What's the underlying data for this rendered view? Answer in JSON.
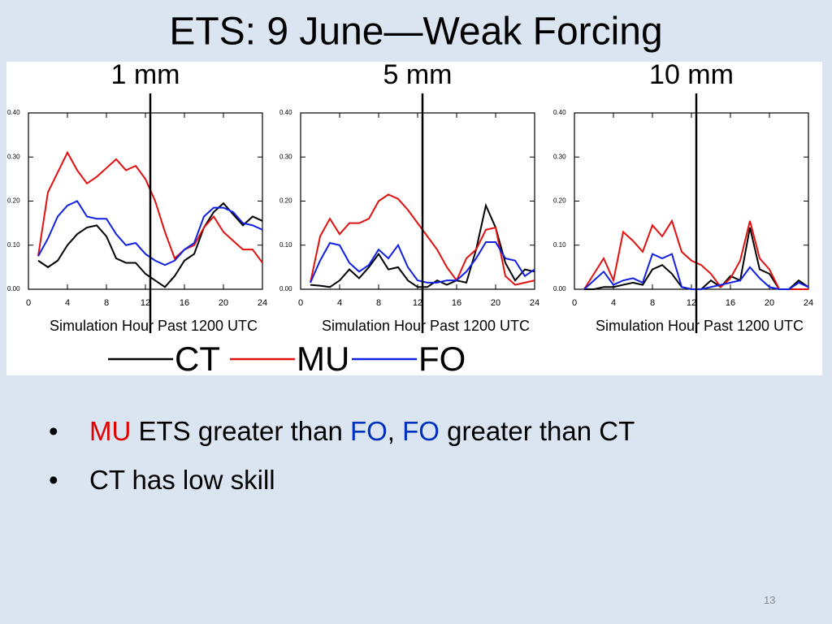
{
  "slide": {
    "title": "ETS:  9 June—Weak Forcing",
    "bullets": [
      [
        {
          "text": "MU",
          "color": "#e00000"
        },
        {
          "text": " ETS greater than ",
          "color": "#000000"
        },
        {
          "text": "FO",
          "color": "#0030c0"
        },
        {
          "text": ", ",
          "color": "#000000"
        },
        {
          "text": "FO",
          "color": "#0030c0"
        },
        {
          "text": " greater than CT",
          "color": "#000000"
        }
      ],
      [
        {
          "text": "CT has low skill",
          "color": "#000000"
        }
      ]
    ],
    "page_number": "13"
  },
  "legend": [
    {
      "name": "CT",
      "color": "#000000"
    },
    {
      "name": "MU",
      "color": "#e01010"
    },
    {
      "name": "FO",
      "color": "#1020e0"
    }
  ],
  "chart_data": [
    {
      "type": "line",
      "title": "1 mm",
      "x_label": "Simulation Hour Past 1200 UTC",
      "marker_x": 12.5,
      "xlim": [
        0,
        24
      ],
      "xticks": [
        0,
        4,
        8,
        12,
        16,
        20,
        24
      ],
      "ylim": [
        0,
        0.4
      ],
      "yticks": [
        {
          "value": 0,
          "label": "0.00"
        },
        {
          "value": 0.1,
          "label": "0.10"
        },
        {
          "value": 0.2,
          "label": "0.20"
        },
        {
          "value": 0.3,
          "label": "0.30"
        },
        {
          "value": 0.4,
          "label": "0.40"
        }
      ],
      "x": [
        1,
        2,
        3,
        4,
        5,
        6,
        7,
        8,
        9,
        10,
        11,
        12,
        13,
        14,
        15,
        16,
        17,
        18,
        19,
        20,
        21,
        22,
        23,
        24
      ],
      "series": [
        {
          "values": [
            0.065,
            0.05,
            0.065,
            0.1,
            0.125,
            0.14,
            0.145,
            0.12,
            0.07,
            0.06,
            0.06,
            0.035,
            0.02,
            0.005,
            0.03,
            0.065,
            0.08,
            0.14,
            0.175,
            0.195,
            0.17,
            0.145,
            0.165,
            0.155
          ]
        },
        {
          "values": [
            0.075,
            0.22,
            0.265,
            0.31,
            0.27,
            0.24,
            0.255,
            0.275,
            0.295,
            0.27,
            0.28,
            0.25,
            0.2,
            0.13,
            0.07,
            0.09,
            0.1,
            0.14,
            0.165,
            0.13,
            0.11,
            0.09,
            0.09,
            0.06
          ]
        },
        {
          "values": [
            0.075,
            0.115,
            0.165,
            0.19,
            0.2,
            0.165,
            0.16,
            0.16,
            0.125,
            0.1,
            0.105,
            0.08,
            0.065,
            0.055,
            0.065,
            0.09,
            0.105,
            0.165,
            0.185,
            0.185,
            0.175,
            0.15,
            0.145,
            0.135
          ]
        }
      ]
    },
    {
      "type": "line",
      "title": "5 mm",
      "x_label": "Simulation Hour Past 1200 UTC",
      "marker_x": 12.5,
      "xlim": [
        0,
        24
      ],
      "xticks": [
        0,
        4,
        8,
        12,
        16,
        20,
        24
      ],
      "ylim": [
        0,
        0.4
      ],
      "yticks": [
        {
          "value": 0,
          "label": "0.00"
        },
        {
          "value": 0.1,
          "label": "0.10"
        },
        {
          "value": 0.2,
          "label": "0.20"
        },
        {
          "value": 0.3,
          "label": "0.30"
        },
        {
          "value": 0.4,
          "label": "0.40"
        }
      ],
      "x": [
        1,
        2,
        3,
        4,
        5,
        6,
        7,
        8,
        9,
        10,
        11,
        12,
        13,
        14,
        15,
        16,
        17,
        18,
        19,
        20,
        21,
        22,
        23,
        24
      ],
      "series": [
        {
          "values": [
            0.01,
            0.008,
            0.005,
            0.02,
            0.045,
            0.025,
            0.05,
            0.08,
            0.045,
            0.05,
            0.02,
            0.005,
            0.005,
            0.02,
            0.01,
            0.02,
            0.015,
            0.09,
            0.19,
            0.14,
            0.06,
            0.02,
            0.045,
            0.04
          ]
        },
        {
          "values": [
            0.015,
            0.12,
            0.16,
            0.125,
            0.15,
            0.15,
            0.16,
            0.2,
            0.215,
            0.205,
            0.18,
            0.15,
            0.12,
            0.09,
            0.05,
            0.02,
            0.07,
            0.09,
            0.135,
            0.14,
            0.03,
            0.01,
            0.015,
            0.02
          ]
        },
        {
          "values": [
            0.015,
            0.065,
            0.105,
            0.1,
            0.06,
            0.04,
            0.055,
            0.09,
            0.07,
            0.1,
            0.05,
            0.02,
            0.015,
            0.015,
            0.02,
            0.02,
            0.04,
            0.07,
            0.107,
            0.107,
            0.07,
            0.065,
            0.03,
            0.045
          ]
        }
      ]
    },
    {
      "type": "line",
      "title": "10 mm",
      "x_label": "Simulation Hour Past 1200 UTC",
      "marker_x": 12.5,
      "xlim": [
        0,
        24
      ],
      "xticks": [
        0,
        4,
        8,
        12,
        16,
        20,
        24
      ],
      "ylim": [
        0,
        0.4
      ],
      "yticks": [
        {
          "value": 0,
          "label": "0.00"
        },
        {
          "value": 0.1,
          "label": "0.10"
        },
        {
          "value": 0.2,
          "label": "0.20"
        },
        {
          "value": 0.3,
          "label": "0.30"
        },
        {
          "value": 0.4,
          "label": "0.40"
        }
      ],
      "x": [
        1,
        2,
        3,
        4,
        5,
        6,
        7,
        8,
        9,
        10,
        11,
        12,
        13,
        14,
        15,
        16,
        17,
        18,
        19,
        20,
        21,
        22,
        23,
        24
      ],
      "series": [
        {
          "values": [
            0,
            0,
            0.005,
            0.005,
            0.01,
            0.015,
            0.01,
            0.045,
            0.055,
            0.035,
            0.005,
            0,
            0,
            0.02,
            0.005,
            0.03,
            0.02,
            0.14,
            0.045,
            0.035,
            0,
            0,
            0.02,
            0.005
          ]
        },
        {
          "values": [
            0,
            0.035,
            0.07,
            0.02,
            0.13,
            0.11,
            0.085,
            0.145,
            0.12,
            0.155,
            0.085,
            0.065,
            0.055,
            0.035,
            0.005,
            0.025,
            0.065,
            0.155,
            0.07,
            0.045,
            0,
            0,
            0,
            0
          ]
        },
        {
          "values": [
            0,
            0.02,
            0.04,
            0.01,
            0.02,
            0.025,
            0.015,
            0.08,
            0.07,
            0.08,
            0.005,
            0,
            0,
            0.005,
            0.01,
            0.015,
            0.02,
            0.05,
            0.025,
            0.005,
            0,
            0,
            0.015,
            0.005
          ]
        }
      ]
    }
  ]
}
